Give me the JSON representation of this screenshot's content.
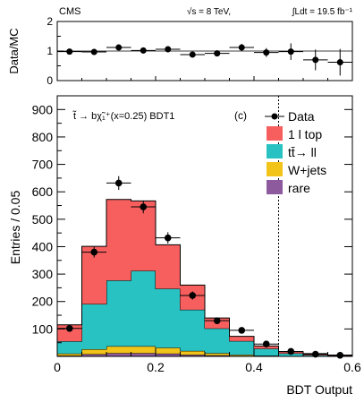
{
  "header": {
    "experiment": "CMS",
    "energy": "√s = 8 TeV,",
    "lumi": "∫Ldt = 19.5 fb⁻¹"
  },
  "chart_data": [
    {
      "type": "scatter",
      "panel": "ratio",
      "ylabel": "Data/MC",
      "ylim": [
        0,
        2
      ],
      "yticks": [
        "0",
        "1",
        "2"
      ],
      "x": [
        0.025,
        0.075,
        0.125,
        0.175,
        0.225,
        0.275,
        0.325,
        0.375,
        0.425,
        0.475,
        0.525,
        0.575
      ],
      "values": [
        0.98,
        0.97,
        1.12,
        1.02,
        1.06,
        0.88,
        0.92,
        1.12,
        0.95,
        0.98,
        0.7,
        0.62
      ],
      "errors": [
        0.04,
        0.05,
        0.05,
        0.05,
        0.05,
        0.08,
        0.1,
        0.12,
        0.15,
        0.28,
        0.35,
        0.45
      ],
      "xlim": [
        0,
        0.6
      ]
    },
    {
      "type": "bar",
      "stacked": true,
      "panel": "main",
      "title": "t̃ → bχ̃₁⁺(x=0.25) BDT1",
      "panel_label": "(c)",
      "xlabel": "BDT Output",
      "ylabel": "Entries / 0.05",
      "xlim": [
        0,
        0.6
      ],
      "ylim": [
        0,
        950
      ],
      "xticks": [
        "0",
        "0.2",
        "0.4",
        "0.6"
      ],
      "yticks": [
        "100",
        "200",
        "300",
        "400",
        "500",
        "600",
        "700",
        "800",
        "900"
      ],
      "bin_edges": [
        0,
        0.05,
        0.1,
        0.15,
        0.2,
        0.25,
        0.3,
        0.35,
        0.4,
        0.45,
        0.5,
        0.55,
        0.6
      ],
      "cut_line": 0.45,
      "series": [
        {
          "name": "rare",
          "color": "#8e5a9e",
          "values": [
            3,
            8,
            12,
            12,
            10,
            6,
            4,
            2,
            1,
            0,
            0,
            0
          ]
        },
        {
          "name": "W+jets",
          "color": "#f2c318",
          "values": [
            7,
            18,
            25,
            25,
            22,
            14,
            8,
            4,
            2,
            1,
            0,
            0
          ]
        },
        {
          "name": "tt̄→ ll",
          "color": "#28c2c2",
          "values": [
            45,
            165,
            240,
            275,
            215,
            150,
            90,
            50,
            25,
            10,
            5,
            3
          ]
        },
        {
          "name": "1 l top",
          "color": "#f75f5f",
          "values": [
            60,
            210,
            295,
            255,
            160,
            90,
            38,
            17,
            10,
            6,
            5,
            2
          ]
        }
      ],
      "data": {
        "name": "Data",
        "x": [
          0.025,
          0.075,
          0.125,
          0.175,
          0.225,
          0.275,
          0.325,
          0.375,
          0.425,
          0.475,
          0.525,
          0.575
        ],
        "values": [
          102,
          380,
          632,
          545,
          432,
          222,
          130,
          95,
          45,
          18,
          8,
          4
        ]
      }
    }
  ]
}
